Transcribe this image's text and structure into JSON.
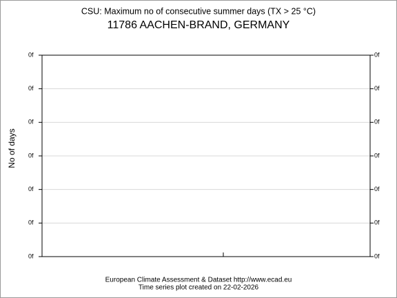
{
  "chart_data": {
    "type": "line",
    "title": "CSU: Maximum no of consecutive summer days (TX > 25 °C)",
    "subtitle": "11786 AACHEN-BRAND, GERMANY",
    "y_label": "No of days",
    "footer": [
      "European Climate Assessment & Dataset  http://www.ecad.eu",
      "Time series plot created on 22-02-2026"
    ],
    "series": [],
    "ylim": [
      0,
      6
    ],
    "yticks": [
      {
        "value": 0,
        "label": "0f"
      },
      {
        "value": 1,
        "label": "0f"
      },
      {
        "value": 2,
        "label": "0f"
      },
      {
        "value": 3,
        "label": "0f"
      },
      {
        "value": 4,
        "label": "0f"
      },
      {
        "value": 5,
        "label": "0f"
      },
      {
        "value": 6,
        "label": "0f"
      }
    ],
    "grid": true
  }
}
